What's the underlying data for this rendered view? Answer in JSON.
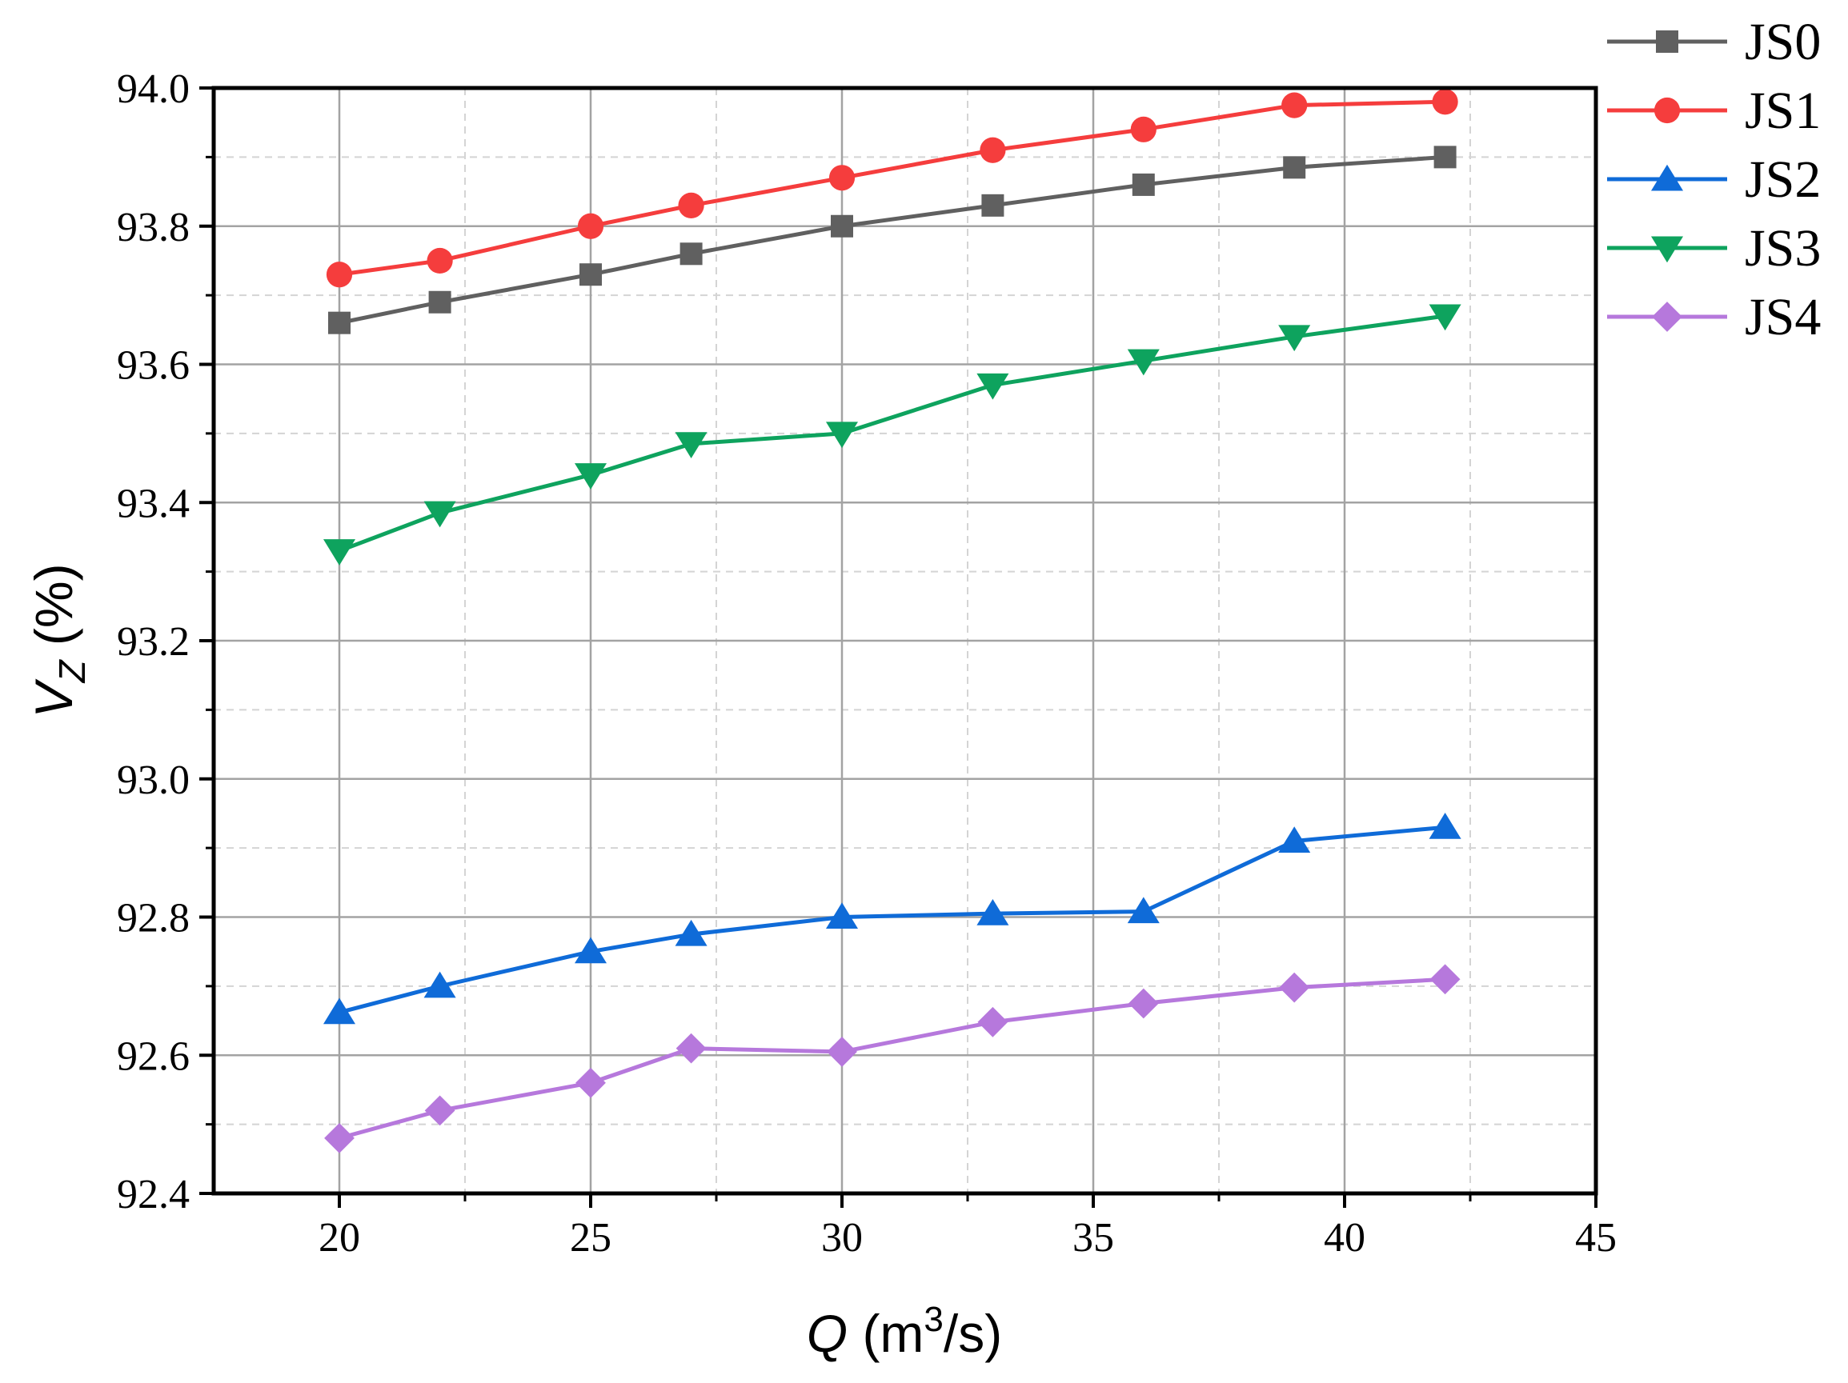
{
  "chart_data": {
    "type": "line",
    "xlabel": {
      "main": "Q (m",
      "sup": "3",
      "rest": "/s)"
    },
    "ylabel": {
      "main": "V",
      "sub": "Z",
      "rest": " (%)"
    },
    "xlim": [
      17.5,
      45
    ],
    "ylim": [
      92.4,
      94.0
    ],
    "xticks": [
      20,
      25,
      30,
      35,
      40,
      45
    ],
    "xtick_labels": [
      "20",
      "25",
      "30",
      "35",
      "40",
      "45"
    ],
    "yticks": [
      92.4,
      92.6,
      92.8,
      93.0,
      93.2,
      93.4,
      93.6,
      93.8,
      94.0
    ],
    "ytick_labels": [
      "92.4",
      "92.6",
      "92.8",
      "93.0",
      "93.2",
      "93.4",
      "93.6",
      "93.8",
      "94.0"
    ],
    "grid": true,
    "legend_position": "outside-top-right",
    "x": [
      20,
      22,
      25,
      27,
      30,
      33,
      36,
      39,
      42
    ],
    "series": [
      {
        "name": "JS0",
        "color": "#606060",
        "marker": "square",
        "values": [
          93.66,
          93.69,
          93.73,
          93.76,
          93.8,
          93.83,
          93.86,
          93.885,
          93.9
        ]
      },
      {
        "name": "JS1",
        "color": "#f53d3d",
        "marker": "circle",
        "values": [
          93.73,
          93.75,
          93.8,
          93.83,
          93.87,
          93.91,
          93.94,
          93.975,
          93.98
        ]
      },
      {
        "name": "JS2",
        "color": "#0f6bd8",
        "marker": "triangle-up",
        "values": [
          92.662,
          92.7,
          92.75,
          92.775,
          92.8,
          92.805,
          92.808,
          92.91,
          92.93
        ]
      },
      {
        "name": "JS3",
        "color": "#0ea35e",
        "marker": "triangle-down",
        "values": [
          93.33,
          93.385,
          93.44,
          93.485,
          93.5,
          93.57,
          93.605,
          93.64,
          93.67
        ]
      },
      {
        "name": "JS4",
        "color": "#b678dc",
        "marker": "diamond",
        "values": [
          92.48,
          92.52,
          92.56,
          92.61,
          92.605,
          92.648,
          92.675,
          92.698,
          92.71
        ]
      }
    ]
  }
}
